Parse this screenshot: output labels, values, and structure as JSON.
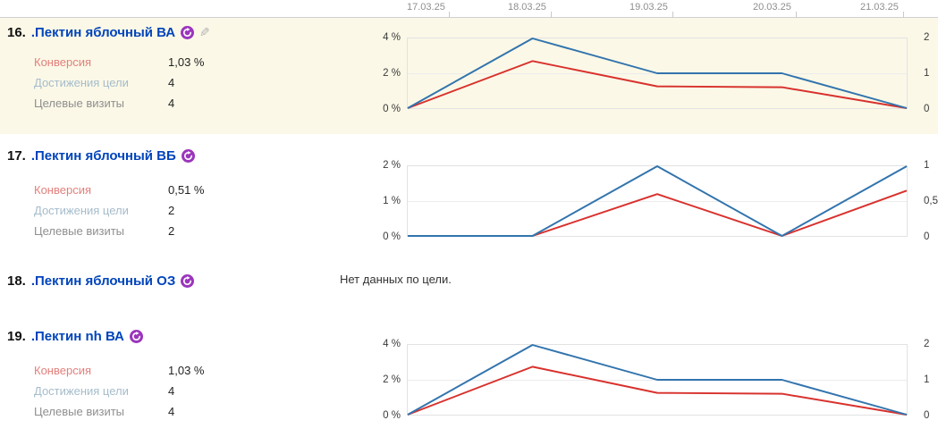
{
  "date_axis": {
    "labels": [
      "17.03.25",
      "18.03.25",
      "19.03.25",
      "20.03.25",
      "21.03.25"
    ]
  },
  "icons": {
    "retargeting_icon": "circular-arrow-badge",
    "edit_icon": "pencil"
  },
  "colors": {
    "link_blue": "#0044bb",
    "retargeting_purple": "#9b35bd",
    "highlight_row_bg": "#fbf8e7",
    "conversion_line_red": "#d8312d",
    "goal_reaches_line_blue": "#3274ad",
    "label_red": "#e2807c",
    "label_light_blue": "#a5bccb",
    "label_gray": "#8f8f8f"
  },
  "rows": [
    {
      "number": "16.",
      "title": ".Пектин яблочный ВА",
      "metrics": [
        {
          "label": "Конверсия",
          "value": "1,03 %"
        },
        {
          "label": "Достижения цели",
          "value": "4"
        },
        {
          "label": "Целевые визиты",
          "value": "4"
        }
      ]
    },
    {
      "number": "17.",
      "title": ".Пектин яблочный ВБ",
      "metrics": [
        {
          "label": "Конверсия",
          "value": "0,51 %"
        },
        {
          "label": "Достижения цели",
          "value": "2"
        },
        {
          "label": "Целевые визиты",
          "value": "2"
        }
      ]
    },
    {
      "number": "18.",
      "title": ".Пектин яблочный ОЗ",
      "no_data_text": "Нет данных по цели."
    },
    {
      "number": "19.",
      "title": ".Пектин nh ВА",
      "metrics": [
        {
          "label": "Конверсия",
          "value": "1,03 %"
        },
        {
          "label": "Достижения цели",
          "value": "4"
        },
        {
          "label": "Целевые визиты",
          "value": "4"
        }
      ]
    }
  ],
  "chart_data": [
    {
      "type": "line",
      "goal": ".Пектин яблочный ВА",
      "x": [
        "17.03.25",
        "18.03.25",
        "19.03.25",
        "20.03.25",
        "21.03.25"
      ],
      "left_axis": {
        "ticks": [
          "4 %",
          "2 %",
          "0 %"
        ],
        "max": 4,
        "min": 0
      },
      "right_axis": {
        "ticks": [
          "2",
          "1",
          "0"
        ],
        "max": 2,
        "min": 0
      },
      "series": [
        {
          "name": "Конверсия",
          "axis": "left",
          "color": "#d8312d",
          "values": [
            0,
            2.7,
            1.25,
            1.2,
            0
          ]
        },
        {
          "name": "Достижения цели",
          "axis": "right",
          "color": "#3274ad",
          "values": [
            0,
            2,
            1,
            1,
            0
          ]
        }
      ]
    },
    {
      "type": "line",
      "goal": ".Пектин яблочный ВБ",
      "x": [
        "17.03.25",
        "18.03.25",
        "19.03.25",
        "20.03.25",
        "21.03.25"
      ],
      "left_axis": {
        "ticks": [
          "2 %",
          "1 %",
          "0 %"
        ],
        "max": 2,
        "min": 0
      },
      "right_axis": {
        "ticks": [
          "1",
          "0,5",
          "0"
        ],
        "max": 1,
        "min": 0
      },
      "series": [
        {
          "name": "Конверсия",
          "axis": "left",
          "color": "#d8312d",
          "values": [
            0,
            0,
            1.2,
            0,
            1.3
          ]
        },
        {
          "name": "Достижения цели",
          "axis": "right",
          "color": "#3274ad",
          "values": [
            0,
            0,
            1,
            0,
            1
          ]
        }
      ]
    },
    {
      "type": "line",
      "goal": ".Пектин nh ВА",
      "x": [
        "17.03.25",
        "18.03.25",
        "19.03.25",
        "20.03.25",
        "21.03.25"
      ],
      "left_axis": {
        "ticks": [
          "4 %",
          "2 %",
          "0 %"
        ],
        "max": 4,
        "min": 0
      },
      "right_axis": {
        "ticks": [
          "2",
          "1",
          "0"
        ],
        "max": 2,
        "min": 0
      },
      "series": [
        {
          "name": "Конверсия",
          "axis": "left",
          "color": "#d8312d",
          "values": [
            0,
            2.75,
            1.25,
            1.2,
            0
          ]
        },
        {
          "name": "Достижения цели",
          "axis": "right",
          "color": "#3274ad",
          "values": [
            0,
            2,
            1,
            1,
            0
          ]
        }
      ]
    }
  ]
}
